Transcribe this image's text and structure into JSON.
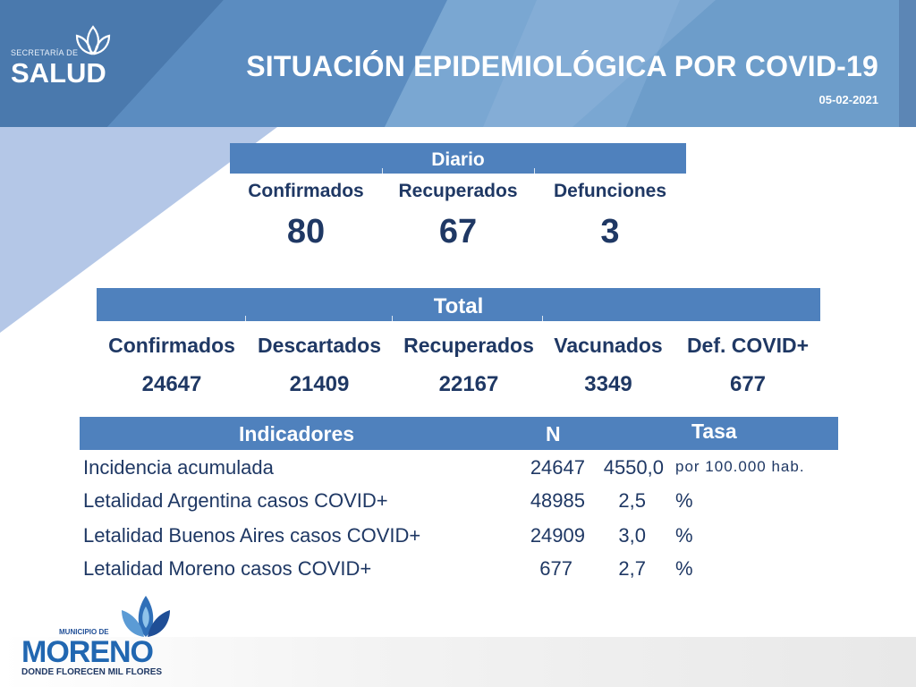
{
  "header": {
    "org_small": "SECRETARÍA DE",
    "org_big": "SALUD",
    "title": "SITUACIÓN EPIDEMIOLÓGICA POR COVID-19",
    "date": "05-02-2021"
  },
  "diario": {
    "heading": "Diario",
    "items": [
      {
        "label": "Confirmados",
        "value": "80"
      },
      {
        "label": "Recuperados",
        "value": "67"
      },
      {
        "label": "Defunciones",
        "value": "3"
      }
    ]
  },
  "total": {
    "heading": "Total",
    "items": [
      {
        "label": "Confirmados",
        "value": "24647"
      },
      {
        "label": "Descartados",
        "value": "21409"
      },
      {
        "label": "Recuperados",
        "value": "22167"
      },
      {
        "label": "Vacunados",
        "value": "3349"
      },
      {
        "label": "Def. COVID+",
        "value": "677"
      }
    ]
  },
  "indicadores": {
    "headers": {
      "name": "Indicadores",
      "n": "N",
      "tasa": "Tasa"
    },
    "rows": [
      {
        "name": "Incidencia acumulada",
        "n": "24647",
        "tasa": "4550,0",
        "unit": "por 100.000 hab."
      },
      {
        "name": "Letalidad Argentina casos COVID+",
        "n": "48985",
        "tasa": "2,5",
        "unit": "%"
      },
      {
        "name": "Letalidad Buenos Aires casos COVID+",
        "n": "24909",
        "tasa": "3,0",
        "unit": "%"
      },
      {
        "name": "Letalidad Moreno casos COVID+",
        "n": "677",
        "tasa": "2,7",
        "unit": "%"
      }
    ]
  },
  "footer": {
    "mun": "MUNICIPIO DE",
    "name": "MORENO",
    "tagline": "DONDE FLORECEN MIL FLORES"
  },
  "colors": {
    "band": "#4f81bd",
    "text": "#1f3864",
    "header_dark": "#4a79ad",
    "header_light": "#8db3d9"
  }
}
